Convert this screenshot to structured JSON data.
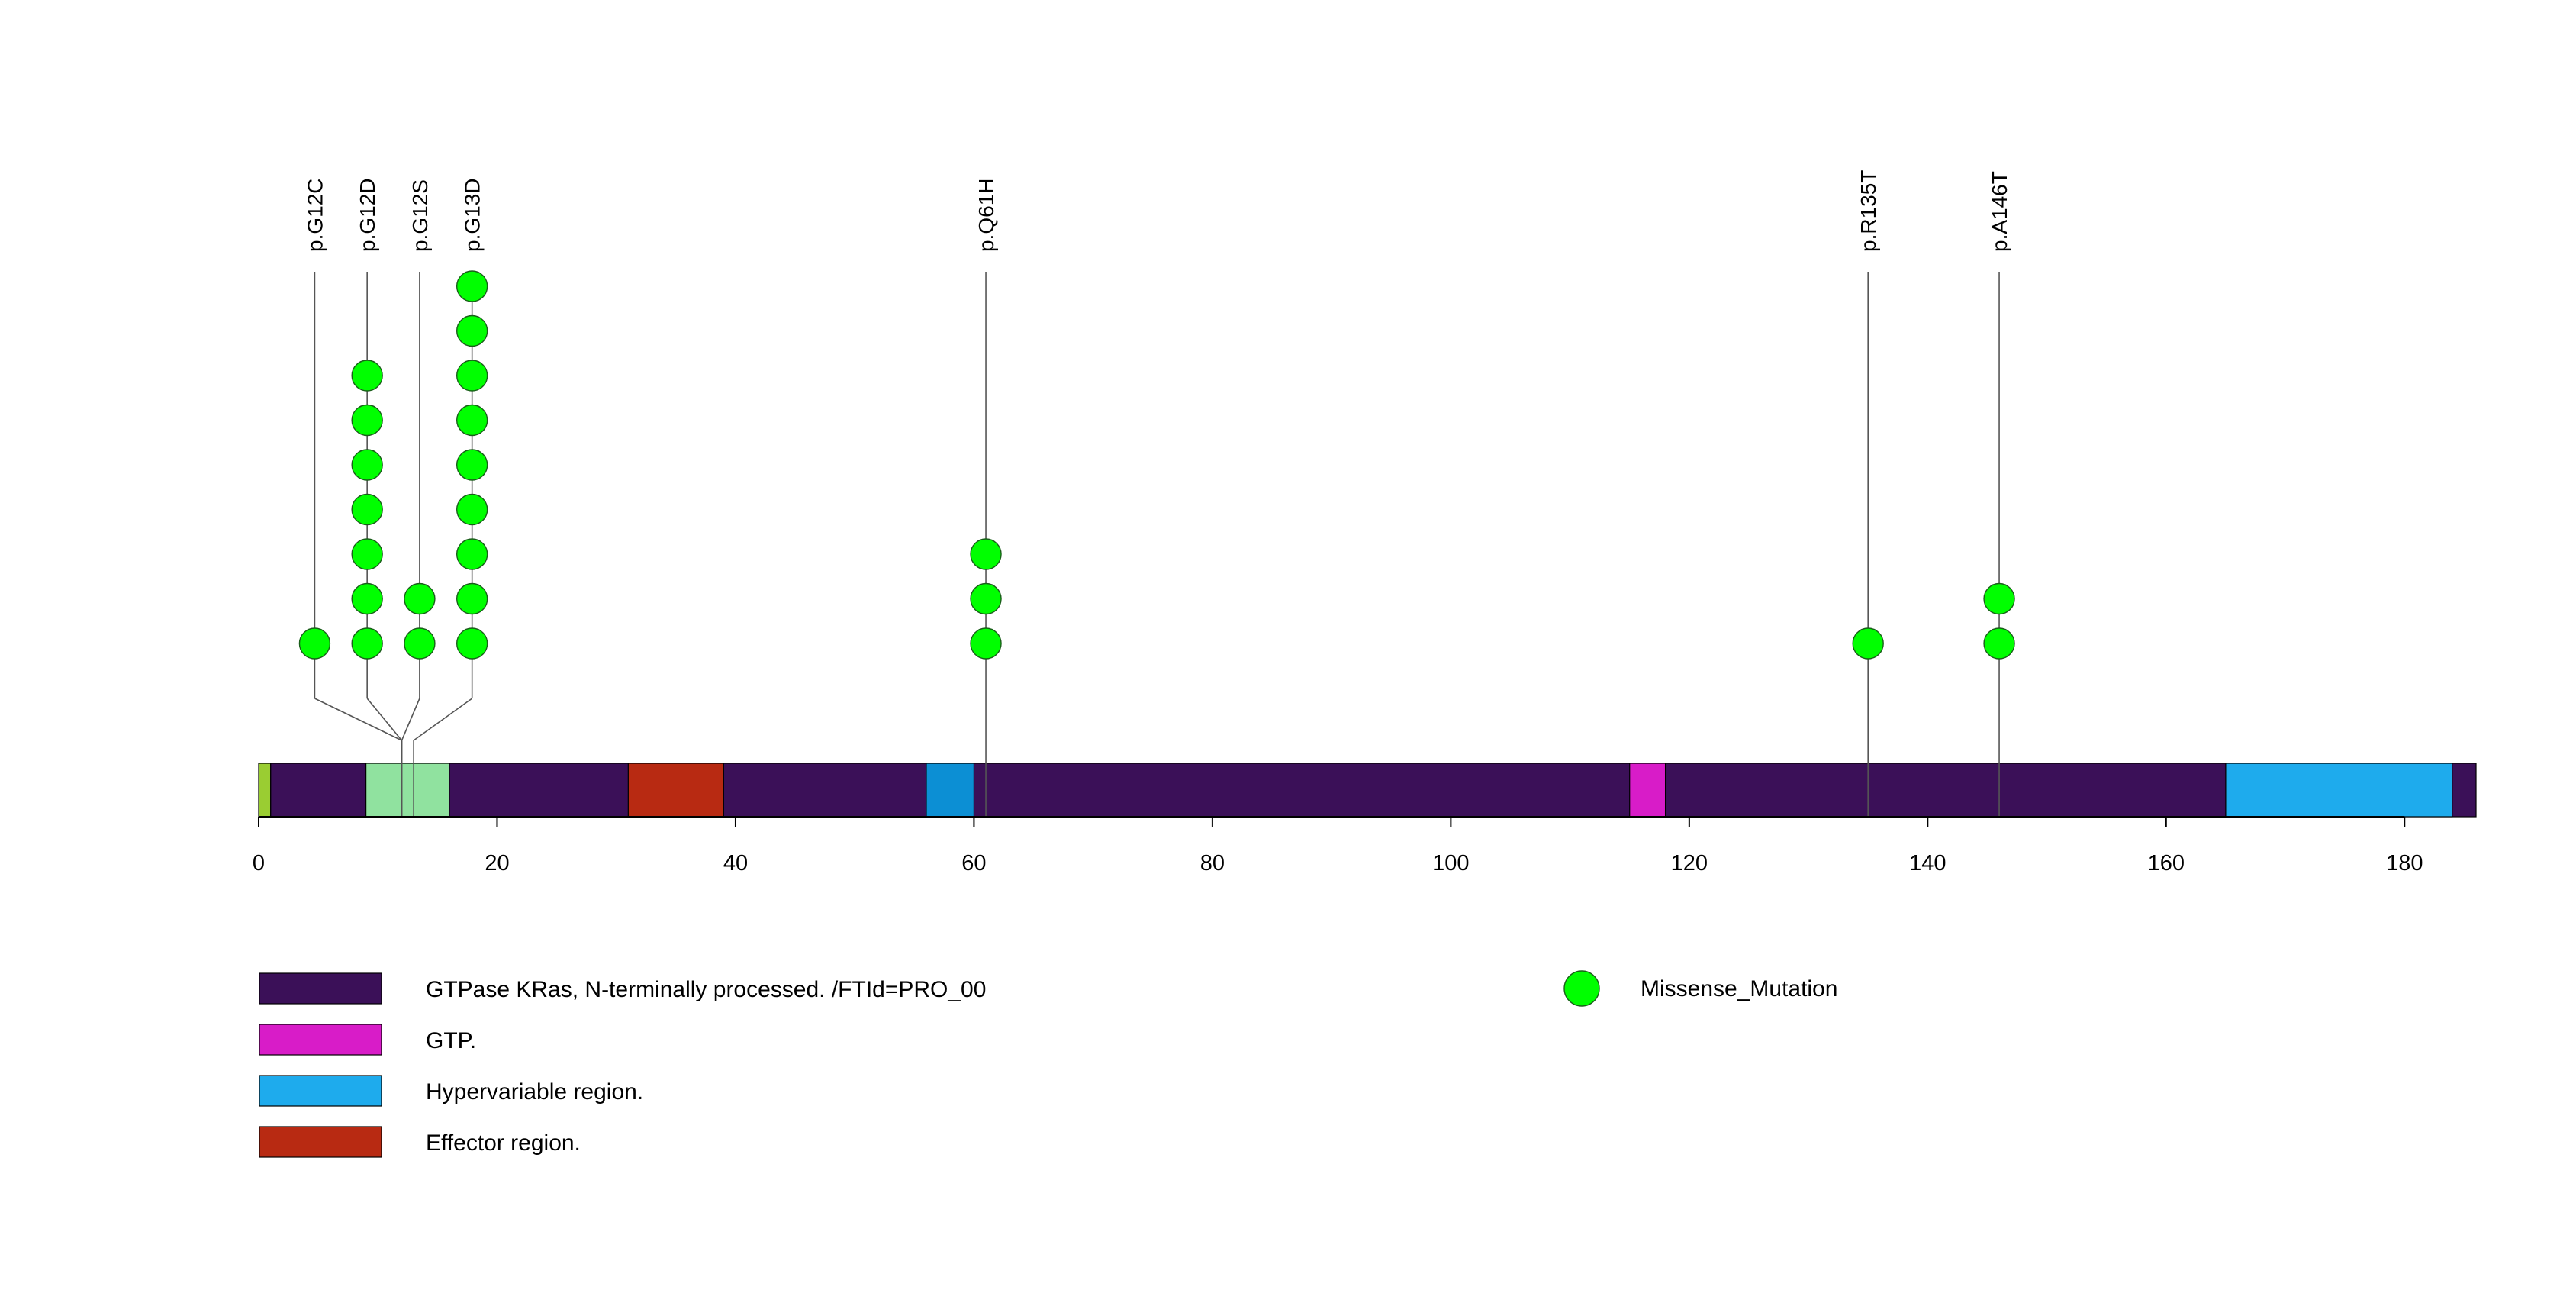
{
  "chart_data": {
    "type": "lollipop",
    "protein_length": 186,
    "x_ticks": [
      0,
      20,
      40,
      60,
      80,
      100,
      120,
      140,
      160,
      180
    ],
    "domains": [
      {
        "start": 1,
        "end": 186,
        "label": "GTPase KRas, N-terminally processed. /FTId=PRO_00",
        "color": "#3b1058"
      },
      {
        "start": 0,
        "end": 1,
        "label": "",
        "color": "#9acd32"
      },
      {
        "start": 9,
        "end": 16,
        "label": "",
        "color": "#90e29f"
      },
      {
        "start": 31,
        "end": 39,
        "label": "Effector region.",
        "color": "#b82a12"
      },
      {
        "start": 56,
        "end": 60,
        "label": "",
        "color": "#0c8fd4"
      },
      {
        "start": 115,
        "end": 118,
        "label": "GTP.",
        "color": "#d81cc8"
      },
      {
        "start": 165,
        "end": 184,
        "label": "Hypervariable region.",
        "color": "#1eabed"
      }
    ],
    "legend_domains": [
      {
        "label": "GTPase KRas, N-terminally processed. /FTId=PRO_00",
        "color": "#3b1058"
      },
      {
        "label": "GTP.",
        "color": "#d81cc8"
      },
      {
        "label": "Hypervariable region.",
        "color": "#1eabed"
      },
      {
        "label": "Effector region.",
        "color": "#b82a12"
      }
    ],
    "mutations": [
      {
        "label": "p.G12C",
        "position": 12,
        "display_position": 4.7,
        "count": 1,
        "type": "Missense_Mutation"
      },
      {
        "label": "p.G12D",
        "position": 12,
        "display_position": 9.1,
        "count": 7,
        "type": "Missense_Mutation"
      },
      {
        "label": "p.G12S",
        "position": 12,
        "display_position": 13.5,
        "count": 2,
        "type": "Missense_Mutation"
      },
      {
        "label": "p.G13D",
        "position": 13,
        "display_position": 17.9,
        "count": 9,
        "type": "Missense_Mutation"
      },
      {
        "label": "p.Q61H",
        "position": 61,
        "display_position": 61,
        "count": 3,
        "type": "Missense_Mutation"
      },
      {
        "label": "p.R135T",
        "position": 135,
        "display_position": 135,
        "count": 1,
        "type": "Missense_Mutation"
      },
      {
        "label": "p.A146T",
        "position": 146,
        "display_position": 146,
        "count": 2,
        "type": "Missense_Mutation"
      }
    ],
    "mutation_legend": {
      "label": "Missense_Mutation",
      "color": "#00ff00"
    }
  }
}
